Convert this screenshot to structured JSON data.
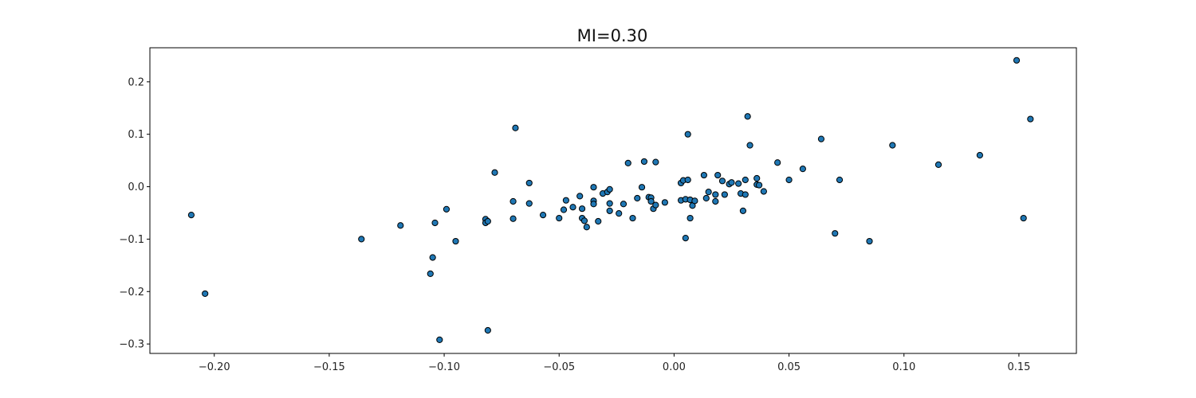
{
  "chart_data": {
    "type": "scatter",
    "title": "MI=0.30",
    "xlabel": "",
    "ylabel": "",
    "xlim": [
      -0.228,
      0.175
    ],
    "ylim": [
      -0.318,
      0.265
    ],
    "xticks": [
      -0.2,
      -0.15,
      -0.1,
      -0.05,
      0.0,
      0.05,
      0.1,
      0.15
    ],
    "xtick_labels": [
      "−0.20",
      "−0.15",
      "−0.10",
      "−0.05",
      "0.00",
      "0.05",
      "0.10",
      "0.15"
    ],
    "yticks": [
      -0.3,
      -0.2,
      -0.1,
      0.0,
      0.1,
      0.2
    ],
    "ytick_labels": [
      "−0.3",
      "−0.2",
      "−0.1",
      "0.0",
      "0.1",
      "0.2"
    ],
    "grid": false,
    "marker_color": "#1f77b4",
    "marker_edge": "#000000",
    "points": [
      {
        "x": -0.21,
        "y": -0.054
      },
      {
        "x": -0.204,
        "y": -0.204
      },
      {
        "x": -0.136,
        "y": -0.1
      },
      {
        "x": -0.119,
        "y": -0.074
      },
      {
        "x": -0.106,
        "y": -0.166
      },
      {
        "x": -0.105,
        "y": -0.135
      },
      {
        "x": -0.104,
        "y": -0.069
      },
      {
        "x": -0.102,
        "y": -0.292
      },
      {
        "x": -0.099,
        "y": -0.043
      },
      {
        "x": -0.095,
        "y": -0.104
      },
      {
        "x": -0.082,
        "y": -0.062
      },
      {
        "x": -0.082,
        "y": -0.069
      },
      {
        "x": -0.081,
        "y": -0.066
      },
      {
        "x": -0.081,
        "y": -0.274
      },
      {
        "x": -0.078,
        "y": 0.027
      },
      {
        "x": -0.07,
        "y": -0.028
      },
      {
        "x": -0.07,
        "y": -0.061
      },
      {
        "x": -0.069,
        "y": 0.112
      },
      {
        "x": -0.063,
        "y": 0.007
      },
      {
        "x": -0.063,
        "y": -0.032
      },
      {
        "x": -0.057,
        "y": -0.054
      },
      {
        "x": -0.05,
        "y": -0.06
      },
      {
        "x": -0.048,
        "y": -0.044
      },
      {
        "x": -0.047,
        "y": -0.026
      },
      {
        "x": -0.044,
        "y": -0.039
      },
      {
        "x": -0.041,
        "y": -0.018
      },
      {
        "x": -0.04,
        "y": -0.042
      },
      {
        "x": -0.04,
        "y": -0.06
      },
      {
        "x": -0.039,
        "y": -0.065
      },
      {
        "x": -0.038,
        "y": -0.077
      },
      {
        "x": -0.035,
        "y": -0.001
      },
      {
        "x": -0.035,
        "y": -0.027
      },
      {
        "x": -0.035,
        "y": -0.033
      },
      {
        "x": -0.033,
        "y": -0.066
      },
      {
        "x": -0.031,
        "y": -0.013
      },
      {
        "x": -0.029,
        "y": -0.01
      },
      {
        "x": -0.028,
        "y": -0.005
      },
      {
        "x": -0.028,
        "y": -0.032
      },
      {
        "x": -0.028,
        "y": -0.046
      },
      {
        "x": -0.024,
        "y": -0.051
      },
      {
        "x": -0.022,
        "y": -0.033
      },
      {
        "x": -0.02,
        "y": 0.045
      },
      {
        "x": -0.018,
        "y": -0.06
      },
      {
        "x": -0.016,
        "y": -0.022
      },
      {
        "x": -0.014,
        "y": -0.001
      },
      {
        "x": -0.013,
        "y": 0.048
      },
      {
        "x": -0.011,
        "y": -0.02
      },
      {
        "x": -0.01,
        "y": -0.021
      },
      {
        "x": -0.01,
        "y": -0.028
      },
      {
        "x": -0.009,
        "y": -0.042
      },
      {
        "x": -0.008,
        "y": -0.035
      },
      {
        "x": -0.008,
        "y": 0.047
      },
      {
        "x": -0.004,
        "y": -0.03
      },
      {
        "x": 0.003,
        "y": 0.007
      },
      {
        "x": 0.003,
        "y": -0.026
      },
      {
        "x": 0.004,
        "y": 0.012
      },
      {
        "x": 0.005,
        "y": -0.024
      },
      {
        "x": 0.005,
        "y": -0.098
      },
      {
        "x": 0.006,
        "y": 0.013
      },
      {
        "x": 0.006,
        "y": 0.1
      },
      {
        "x": 0.007,
        "y": -0.06
      },
      {
        "x": 0.007,
        "y": -0.025
      },
      {
        "x": 0.008,
        "y": -0.036
      },
      {
        "x": 0.009,
        "y": -0.027
      },
      {
        "x": 0.013,
        "y": 0.022
      },
      {
        "x": 0.014,
        "y": -0.022
      },
      {
        "x": 0.015,
        "y": -0.01
      },
      {
        "x": 0.018,
        "y": -0.015
      },
      {
        "x": 0.018,
        "y": -0.028
      },
      {
        "x": 0.019,
        "y": 0.022
      },
      {
        "x": 0.021,
        "y": 0.011
      },
      {
        "x": 0.022,
        "y": -0.015
      },
      {
        "x": 0.024,
        "y": 0.005
      },
      {
        "x": 0.025,
        "y": 0.008
      },
      {
        "x": 0.028,
        "y": 0.006
      },
      {
        "x": 0.029,
        "y": -0.013
      },
      {
        "x": 0.03,
        "y": -0.046
      },
      {
        "x": 0.031,
        "y": -0.015
      },
      {
        "x": 0.031,
        "y": 0.013
      },
      {
        "x": 0.032,
        "y": 0.134
      },
      {
        "x": 0.033,
        "y": 0.079
      },
      {
        "x": 0.036,
        "y": 0.016
      },
      {
        "x": 0.036,
        "y": 0.004
      },
      {
        "x": 0.037,
        "y": 0.003
      },
      {
        "x": 0.039,
        "y": -0.009
      },
      {
        "x": 0.045,
        "y": 0.046
      },
      {
        "x": 0.05,
        "y": 0.013
      },
      {
        "x": 0.056,
        "y": 0.034
      },
      {
        "x": 0.064,
        "y": 0.091
      },
      {
        "x": 0.07,
        "y": -0.089
      },
      {
        "x": 0.072,
        "y": 0.013
      },
      {
        "x": 0.085,
        "y": -0.104
      },
      {
        "x": 0.095,
        "y": 0.079
      },
      {
        "x": 0.115,
        "y": 0.042
      },
      {
        "x": 0.133,
        "y": 0.06
      },
      {
        "x": 0.149,
        "y": 0.241
      },
      {
        "x": 0.152,
        "y": -0.06
      },
      {
        "x": 0.155,
        "y": 0.129
      }
    ]
  }
}
